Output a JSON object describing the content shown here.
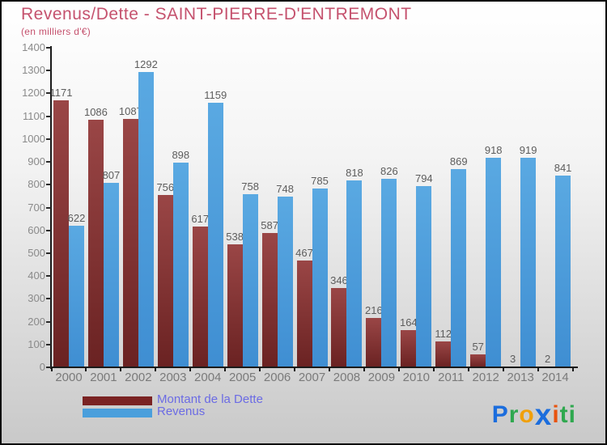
{
  "header": {
    "title": "Revenus/Dette - SAINT-PIERRE-D'ENTREMONT",
    "subtitle": "(en milliers d'€)"
  },
  "chart_data": {
    "type": "bar",
    "title": "Revenus/Dette - SAINT-PIERRE-D'ENTREMONT",
    "subtitle": "(en milliers d'€)",
    "unit": "milliers d'€",
    "categories": [
      "2000",
      "2001",
      "2002",
      "2003",
      "2004",
      "2005",
      "2006",
      "2007",
      "2008",
      "2009",
      "2010",
      "2011",
      "2012",
      "2013",
      "2014"
    ],
    "series": [
      {
        "name": "Montant de la Dette",
        "color": "#7a2323",
        "gradient": [
          "#9a4646",
          "#6a2222"
        ],
        "values": [
          1171,
          1086,
          1087,
          756,
          617,
          538,
          587,
          467,
          346,
          216,
          164,
          112,
          57,
          3,
          2
        ]
      },
      {
        "name": "Revenus",
        "color": "#4a9fdc",
        "gradient": [
          "#5aa9e2",
          "#3f8ed2"
        ],
        "values": [
          622,
          807,
          1292,
          898,
          1159,
          758,
          748,
          785,
          818,
          826,
          794,
          869,
          918,
          919,
          841
        ]
      }
    ],
    "ylim": [
      0,
      1400
    ],
    "ytick_step": 100,
    "grid": false,
    "legend_position": "bottom-left",
    "bar_value_labels": true
  },
  "legend": {
    "items": [
      {
        "label": "Montant de la Dette",
        "color": "#7a2323"
      },
      {
        "label": "Revenus",
        "color": "#4a9fdc"
      }
    ]
  },
  "logo": {
    "text": "Proxiti",
    "letters": [
      {
        "ch": "P",
        "color": "#1b6ddd",
        "big": false
      },
      {
        "ch": "r",
        "color": "#2fa84f",
        "big": false
      },
      {
        "ch": "o",
        "color": "#f0a00c",
        "big": false
      },
      {
        "ch": "x",
        "color": "#1b6ddd",
        "big": true
      },
      {
        "ch": "i",
        "color": "#e8530e",
        "big": false
      },
      {
        "ch": "t",
        "color": "#2fa84f",
        "big": false
      },
      {
        "ch": "i",
        "color": "#2fa84f",
        "big": false
      }
    ]
  },
  "colors": {
    "title": "#c5526e",
    "legend_text": "#6b6be4",
    "axis": "#1a1a1a",
    "tick_label": "#8a8a8a",
    "year_label": "#7a7a7a",
    "value_label": "#5d5d5d",
    "background_top": "#ffffff",
    "background_bottom": "#c9c9c9"
  }
}
